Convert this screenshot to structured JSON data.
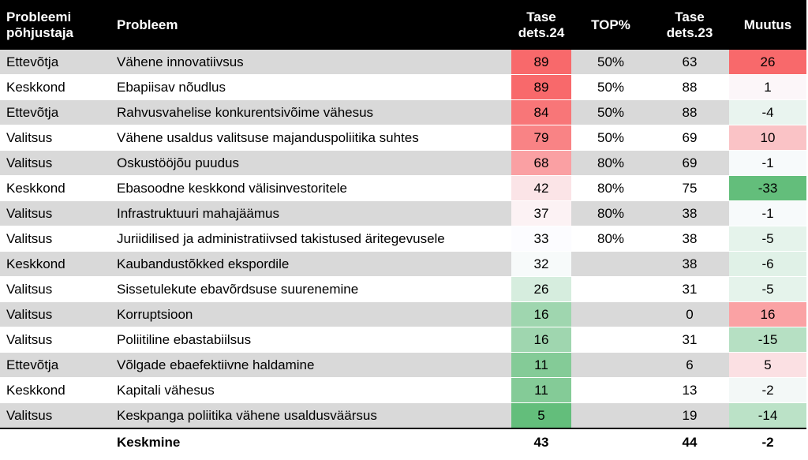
{
  "chart_data": {
    "type": "table",
    "columns": [
      "Probleemi põhjustaja",
      "Probleem",
      "Tase dets.24",
      "TOP%",
      "Tase dets.23",
      "Muutus"
    ],
    "header": {
      "cause_line1": "Probleemi",
      "cause_line2": "põhjustaja",
      "problem": "Probleem",
      "level24_line1": "Tase",
      "level24_line2": "dets.24",
      "top": "TOP%",
      "level23_line1": "Tase",
      "level23_line2": "dets.23",
      "change": "Muutus"
    },
    "rows": [
      {
        "cause": "Ettevõtja",
        "problem": "Vähene innovatiivsus",
        "level24": "89",
        "top": "50%",
        "level23": "63",
        "change": "26"
      },
      {
        "cause": "Keskkond",
        "problem": "Ebapiisav nõudlus",
        "level24": "89",
        "top": "50%",
        "level23": "88",
        "change": "1"
      },
      {
        "cause": "Ettevõtja",
        "problem": "Rahvusvahelise konkurentsivõime vähesus",
        "level24": "84",
        "top": "50%",
        "level23": "88",
        "change": "-4"
      },
      {
        "cause": "Valitsus",
        "problem": "Vähene usaldus valitsuse majanduspoliitika suhtes",
        "level24": "79",
        "top": "50%",
        "level23": "69",
        "change": "10"
      },
      {
        "cause": "Valitsus",
        "problem": "Oskustööjõu puudus",
        "level24": "68",
        "top": "80%",
        "level23": "69",
        "change": "-1"
      },
      {
        "cause": "Keskkond",
        "problem": "Ebasoodne keskkond välisinvestoritele",
        "level24": "42",
        "top": "80%",
        "level23": "75",
        "change": "-33"
      },
      {
        "cause": "Valitsus",
        "problem": "Infrastruktuuri mahajäämus",
        "level24": "37",
        "top": "80%",
        "level23": "38",
        "change": "-1"
      },
      {
        "cause": "Valitsus",
        "problem": "Juriidilised ja administratiivsed takistused äritegevusele",
        "level24": "33",
        "top": "80%",
        "level23": "38",
        "change": "-5"
      },
      {
        "cause": "Keskkond",
        "problem": "Kaubandustõkked ekspordile",
        "level24": "32",
        "top": "",
        "level23": "38",
        "change": "-6"
      },
      {
        "cause": "Valitsus",
        "problem": "Sissetulekute ebavõrdsuse suurenemine",
        "level24": "26",
        "top": "",
        "level23": "31",
        "change": "-5"
      },
      {
        "cause": "Valitsus",
        "problem": "Korruptsioon",
        "level24": "16",
        "top": "",
        "level23": "0",
        "change": "16"
      },
      {
        "cause": "Valitsus",
        "problem": "Poliitiline ebastabiilsus",
        "level24": "16",
        "top": "",
        "level23": "31",
        "change": "-15"
      },
      {
        "cause": "Ettevõtja",
        "problem": "Võlgade ebaefektiivne haldamine",
        "level24": "11",
        "top": "",
        "level23": "6",
        "change": "5"
      },
      {
        "cause": "Keskkond",
        "problem": "Kapitali vähesus",
        "level24": "11",
        "top": "",
        "level23": "13",
        "change": "-2"
      },
      {
        "cause": "Valitsus",
        "problem": "Keskpanga poliitika vähene usaldusväärsus",
        "level24": "5",
        "top": "",
        "level23": "19",
        "change": "-14"
      }
    ],
    "footer": {
      "cause": "",
      "problem": "Keskmine",
      "level24": "43",
      "top": "",
      "level23": "44",
      "change": "-2"
    },
    "colors": {
      "header_bg": "#000000",
      "stripe": "#d9d9d9",
      "high": "#f8696b",
      "mid": "#fcfcff",
      "low": "#63be7b"
    }
  }
}
